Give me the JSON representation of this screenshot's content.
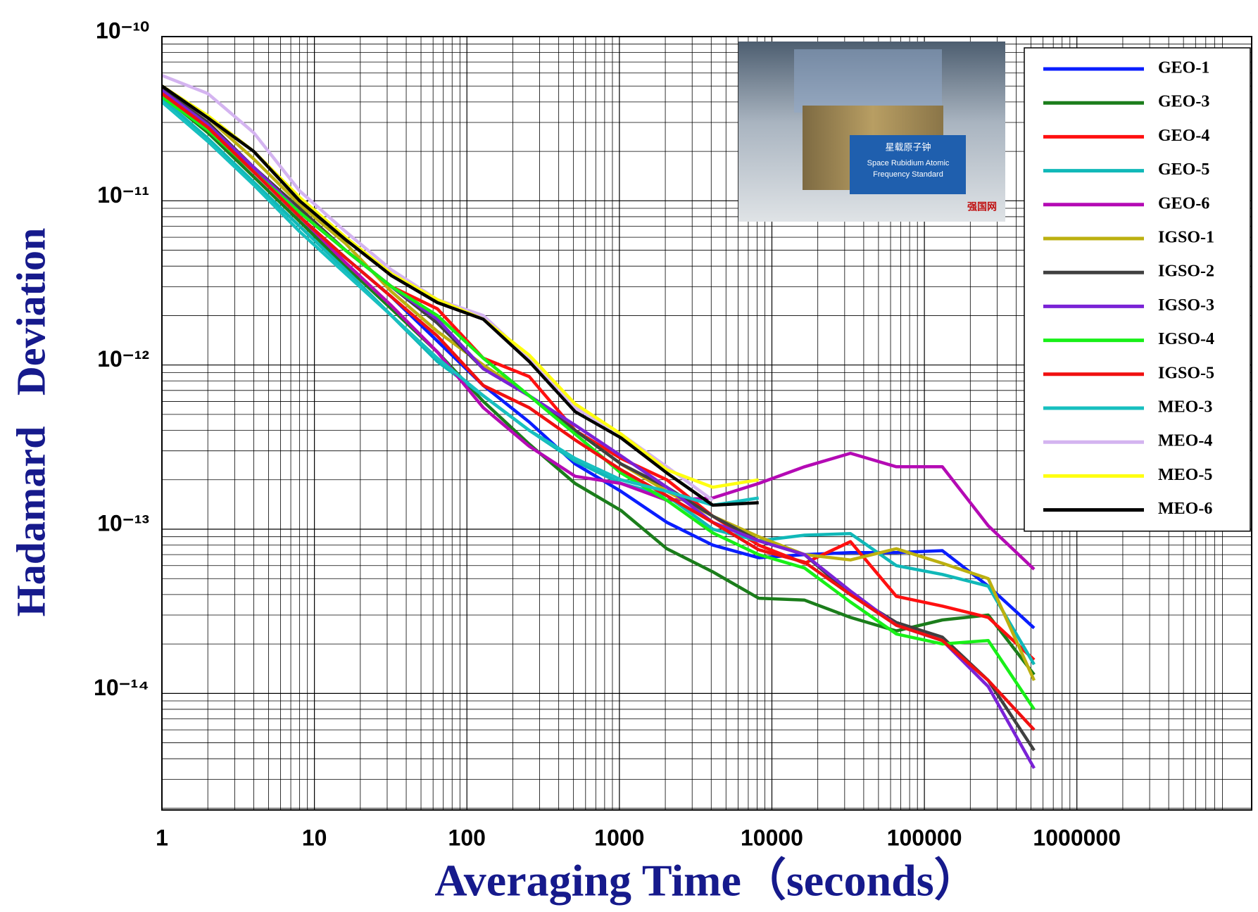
{
  "chart_data": {
    "type": "line",
    "x_label": "Averaging Time（seconds）",
    "y_label": "Hadamard   Deviation",
    "log_x": true,
    "log_y": true,
    "grid": true,
    "minor_grid": true,
    "legend": "top-right",
    "xlim": [
      1,
      14000000
    ],
    "ylim": [
      1.95e-15,
      1e-10
    ],
    "xticks": [
      1,
      10,
      100,
      1000,
      10000,
      100000,
      1000000
    ],
    "yticks": [
      {
        "value": 1e-10,
        "label": "10⁻¹⁰"
      },
      {
        "value": 1e-11,
        "label": "10⁻¹¹"
      },
      {
        "value": 1e-12,
        "label": "10⁻¹²"
      },
      {
        "value": 1e-13,
        "label": "10⁻¹³"
      },
      {
        "value": 1e-14,
        "label": "10⁻¹⁴"
      }
    ],
    "x": [
      1,
      2,
      4,
      8,
      16,
      32,
      64,
      128,
      256,
      512,
      1024,
      2048,
      4096,
      8192,
      16384,
      32768,
      65536,
      131072,
      262144,
      524288
    ],
    "series": [
      {
        "name": "GEO-1",
        "color": "#0a1eff",
        "values": [
          4.5e-11,
          2.8e-11,
          1.5e-11,
          8e-12,
          4.5e-12,
          2.6e-12,
          1.4e-12,
          7.5e-13,
          4.5e-13,
          2.5e-13,
          1.7e-13,
          1.1e-13,
          8e-14,
          6.7e-14,
          7e-14,
          7.2e-14,
          7.2e-14,
          7.4e-14,
          4.5e-14,
          2.5e-14
        ]
      },
      {
        "name": "GEO-3",
        "color": "#1b7d1b",
        "values": [
          4.4e-11,
          2.6e-11,
          1.4e-11,
          7.5e-12,
          4e-12,
          2.2e-12,
          1.2e-12,
          6e-13,
          3.3e-13,
          1.9e-13,
          1.3e-13,
          7.6e-14,
          5.5e-14,
          3.8e-14,
          3.7e-14,
          2.9e-14,
          2.4e-14,
          2.8e-14,
          3e-14,
          1.3e-14
        ]
      },
      {
        "name": "GEO-4",
        "color": "#ff1010",
        "values": [
          4.8e-11,
          3e-11,
          1.6e-11,
          8.5e-12,
          5e-12,
          3e-12,
          2.2e-12,
          1.1e-12,
          8.5e-13,
          4e-13,
          2.7e-13,
          2e-13,
          1.2e-13,
          8e-14,
          6.2e-14,
          8.4e-14,
          3.9e-14,
          3.4e-14,
          2.9e-14,
          1.6e-14
        ]
      },
      {
        "name": "GEO-5",
        "color": "#10b8b8",
        "values": [
          4.2e-11,
          2.4e-11,
          1.3e-11,
          7e-12,
          3.8e-12,
          2e-12,
          1.05e-12,
          6.5e-13,
          4e-13,
          2.6e-13,
          1.9e-13,
          1.6e-13,
          1e-13,
          8.5e-14,
          9.2e-14,
          9.4e-14,
          6e-14,
          5.3e-14,
          4.5e-14,
          1.5e-14
        ]
      },
      {
        "name": "GEO-6",
        "color": "#b40ab4",
        "values": [
          4.6e-11,
          2.9e-11,
          1.5e-11,
          8e-12,
          4.2e-12,
          2.3e-12,
          1.2e-12,
          5.5e-13,
          3.2e-13,
          2.1e-13,
          1.9e-13,
          1.5e-13,
          1.55e-13,
          1.9e-13,
          2.4e-13,
          2.9e-13,
          2.4e-13,
          2.4e-13,
          1.05e-13,
          5.7e-14
        ]
      },
      {
        "name": "IGSO-1",
        "color": "#bcb010",
        "values": [
          5e-11,
          3.2e-11,
          1.8e-11,
          9.5e-12,
          5.5e-12,
          2.8e-12,
          1.6e-12,
          1e-12,
          6.5e-13,
          4e-13,
          2.5e-13,
          1.7e-13,
          1.2e-13,
          9e-14,
          7e-14,
          6.5e-14,
          7.6e-14,
          6.2e-14,
          5e-14,
          1.2e-14
        ]
      },
      {
        "name": "IGSO-2",
        "color": "#404040",
        "values": [
          4.8e-11,
          3e-11,
          1.6e-11,
          9e-12,
          5e-12,
          3e-12,
          1.8e-12,
          9.5e-13,
          6.5e-13,
          4e-13,
          2.5e-13,
          1.8e-13,
          1.2e-13,
          8.5e-14,
          7e-14,
          4e-14,
          2.7e-14,
          2.2e-14,
          1.2e-14,
          4.5e-15
        ]
      },
      {
        "name": "IGSO-3",
        "color": "#7a22d6",
        "values": [
          4.7e-11,
          2.9e-11,
          1.6e-11,
          8.5e-12,
          5e-12,
          3e-12,
          1.9e-12,
          9.5e-13,
          6.5e-13,
          4.3e-13,
          2.8e-13,
          1.8e-13,
          1.1e-13,
          8.5e-14,
          7e-14,
          4.2e-14,
          2.6e-14,
          2.1e-14,
          1.1e-14,
          3.5e-15
        ]
      },
      {
        "name": "IGSO-4",
        "color": "#18f018",
        "values": [
          4.3e-11,
          2.7e-11,
          1.5e-11,
          8.5e-12,
          5e-12,
          3e-12,
          2e-12,
          1.1e-12,
          6.5e-13,
          3.8e-13,
          2.2e-13,
          1.5e-13,
          9.5e-14,
          7e-14,
          5.8e-14,
          3.6e-14,
          2.3e-14,
          2e-14,
          2.1e-14,
          8e-15
        ]
      },
      {
        "name": "IGSO-5",
        "color": "#f01010",
        "values": [
          4.5e-11,
          2.8e-11,
          1.5e-11,
          8e-12,
          4.5e-12,
          2.6e-12,
          1.5e-12,
          7.5e-13,
          5.5e-13,
          3.5e-13,
          2.3e-13,
          1.6e-13,
          1.1e-13,
          7.5e-14,
          6.3e-14,
          4e-14,
          2.6e-14,
          2.1e-14,
          1.2e-14,
          6e-15
        ]
      },
      {
        "name": "MEO-3",
        "color": "#18c0c0",
        "values": [
          4e-11,
          2.3e-11,
          1.25e-11,
          6.5e-12,
          3.6e-12,
          2e-12,
          1.1e-12,
          6.5e-13,
          4e-13,
          2.7e-13,
          2e-13,
          1.7e-13,
          1.4e-13,
          1.55e-13,
          null,
          null,
          null,
          null,
          null,
          null
        ]
      },
      {
        "name": "MEO-4",
        "color": "#d4b4f0",
        "values": [
          5.8e-11,
          4.5e-11,
          2.6e-11,
          1.15e-11,
          6.5e-12,
          3.8e-12,
          2.5e-12,
          2e-12,
          1.1e-12,
          5.5e-13,
          3.8e-13,
          2.4e-13,
          1.5e-13,
          null,
          null,
          null,
          null,
          null,
          null,
          null
        ]
      },
      {
        "name": "MEO-5",
        "color": "#ffff10",
        "values": [
          5e-11,
          3.3e-11,
          2e-11,
          1.05e-11,
          6e-12,
          3.6e-12,
          2.5e-12,
          1.9e-12,
          1.15e-12,
          5.8e-13,
          3.8e-13,
          2.3e-13,
          1.8e-13,
          2e-13,
          null,
          null,
          null,
          null,
          null,
          null
        ]
      },
      {
        "name": "MEO-6",
        "color": "#000000",
        "values": [
          5e-11,
          3.2e-11,
          2e-11,
          1e-11,
          5.8e-12,
          3.5e-12,
          2.4e-12,
          1.9e-12,
          1.05e-12,
          5.2e-13,
          3.6e-13,
          2.2e-13,
          1.4e-13,
          1.45e-13,
          null,
          null,
          null,
          null,
          null,
          null
        ]
      }
    ]
  },
  "inset_image": {
    "caption_cn": "星载原子钟",
    "caption_en_1": "Space Rubidium Atomic",
    "caption_en_2": "Frequency Standard",
    "watermark": "强国网"
  }
}
